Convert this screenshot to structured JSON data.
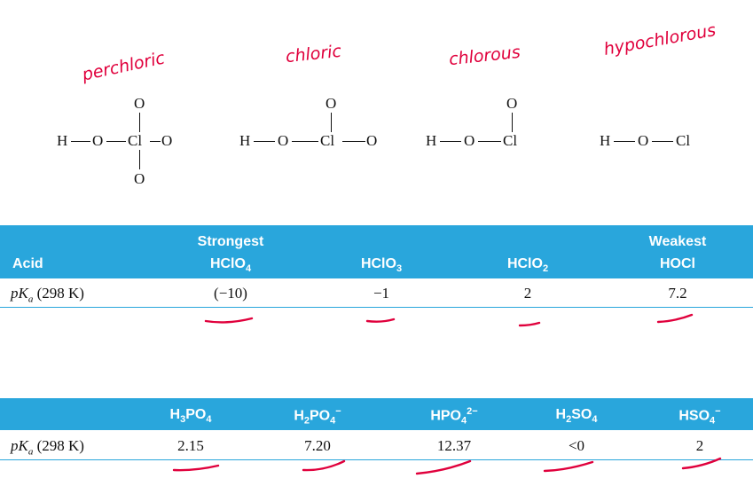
{
  "annotations": {
    "perchloric": "perchloric",
    "chloric": "chloric",
    "chlorous": "chlorous",
    "hypochlorous": "hypochlorous"
  },
  "structures": {
    "atom_H": "H",
    "atom_O": "O",
    "atom_Cl": "Cl"
  },
  "table1": {
    "acid_header": "Acid",
    "strongest_label": "Strongest",
    "weakest_label": "Weakest",
    "columns": [
      "HClO4",
      "HClO3",
      "HClO2",
      "HOCl"
    ],
    "row_label_p": "p",
    "row_label_K": "K",
    "row_label_a": "a",
    "row_label_rest": " (298 K)",
    "values": [
      "(−10)",
      "−1",
      "2",
      "7.2"
    ]
  },
  "table2": {
    "columns": [
      "H3PO4",
      "H2PO4−",
      "HPO42−",
      "H2SO4",
      "HSO4−"
    ],
    "row_label_p": "p",
    "row_label_K": "K",
    "row_label_a": "a",
    "row_label_rest": " (298 K)",
    "values": [
      "2.15",
      "7.20",
      "12.37",
      "<0",
      "2"
    ]
  },
  "colors": {
    "header_bar": "#29a6dc",
    "annotation_ink": "#e0003c"
  }
}
